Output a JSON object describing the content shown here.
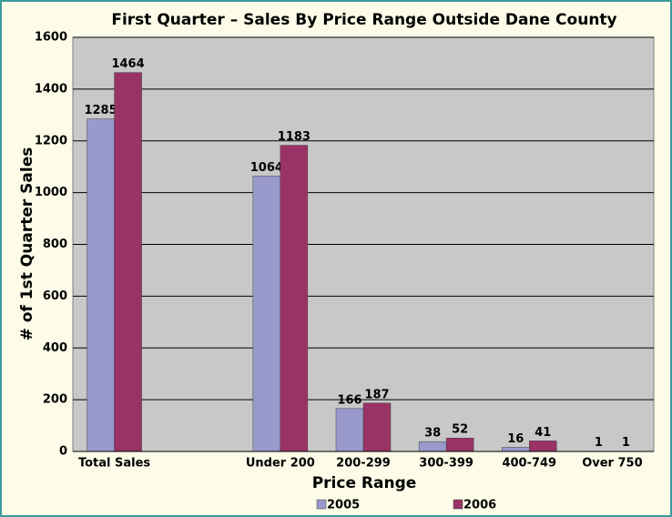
{
  "chart_data": {
    "type": "bar",
    "title": "First Quarter – Sales By Price Range Outside Dane County",
    "x_label": "Price Range",
    "y_label": "# of 1st Quarter Sales",
    "categories": [
      "Total Sales",
      null,
      "Under 200",
      "200-299",
      "300-399",
      "400-749",
      "Over 750"
    ],
    "series": [
      {
        "name": "2005",
        "color": "#9999cc",
        "values": [
          1285,
          null,
          1064,
          166,
          38,
          16,
          1
        ]
      },
      {
        "name": "2006",
        "color": "#993366",
        "values": [
          1464,
          null,
          1183,
          187,
          52,
          41,
          1
        ]
      }
    ],
    "ylim": [
      0,
      1600
    ],
    "yticks": [
      0,
      200,
      400,
      600,
      800,
      1000,
      1200,
      1400,
      1600
    ],
    "grid": true,
    "legend": "bottom"
  }
}
